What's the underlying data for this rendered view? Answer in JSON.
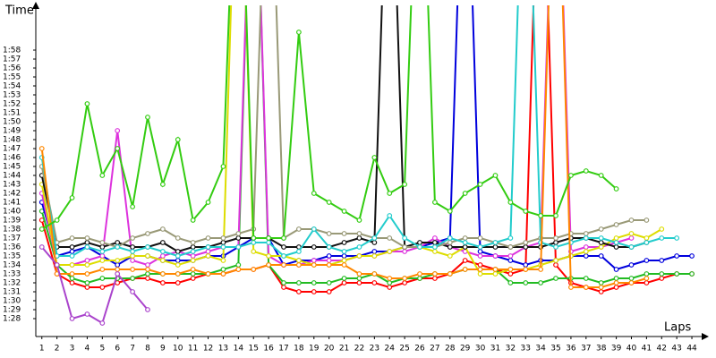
{
  "chart_data": {
    "type": "line",
    "y_label": "Time",
    "x_label": "Laps",
    "x": [
      1,
      2,
      3,
      4,
      5,
      6,
      7,
      8,
      9,
      10,
      11,
      12,
      13,
      14,
      15,
      16,
      17,
      18,
      19,
      20,
      21,
      22,
      23,
      24,
      25,
      26,
      27,
      28,
      29,
      30,
      31,
      32,
      33,
      34,
      35,
      36,
      37,
      38,
      39,
      40,
      41,
      42,
      43,
      44
    ],
    "xlim": [
      0.6,
      45.3
    ],
    "xticks": [
      1,
      2,
      3,
      4,
      5,
      6,
      7,
      8,
      9,
      10,
      11,
      12,
      13,
      14,
      15,
      16,
      17,
      18,
      19,
      20,
      21,
      22,
      23,
      24,
      25,
      26,
      27,
      28,
      29,
      30,
      31,
      32,
      33,
      34,
      35,
      36,
      37,
      38,
      39,
      40,
      41,
      42,
      43,
      44
    ],
    "ylim": [
      86,
      123
    ],
    "yticks": [
      {
        "value": 88,
        "label": "1:28"
      },
      {
        "value": 89,
        "label": "1:29"
      },
      {
        "value": 90,
        "label": "1:30"
      },
      {
        "value": 91,
        "label": "1:31"
      },
      {
        "value": 92,
        "label": "1:32"
      },
      {
        "value": 93,
        "label": "1:33"
      },
      {
        "value": 94,
        "label": "1:34"
      },
      {
        "value": 95,
        "label": "1:35"
      },
      {
        "value": 96,
        "label": "1:36"
      },
      {
        "value": 97,
        "label": "1:37"
      },
      {
        "value": 98,
        "label": "1:38"
      },
      {
        "value": 99,
        "label": "1:39"
      },
      {
        "value": 100,
        "label": "1:40"
      },
      {
        "value": 101,
        "label": "1:41"
      },
      {
        "value": 102,
        "label": "1:42"
      },
      {
        "value": 103,
        "label": "1:43"
      },
      {
        "value": 104,
        "label": "1:44"
      },
      {
        "value": 105,
        "label": "1:45"
      },
      {
        "value": 106,
        "label": "1:46"
      },
      {
        "value": 107,
        "label": "1:47"
      },
      {
        "value": 108,
        "label": "1:48"
      },
      {
        "value": 109,
        "label": "1:49"
      },
      {
        "value": 110,
        "label": "1:50"
      },
      {
        "value": 111,
        "label": "1:51"
      },
      {
        "value": 112,
        "label": "1:52"
      },
      {
        "value": 113,
        "label": "1:53"
      },
      {
        "value": 114,
        "label": "1:54"
      },
      {
        "value": 115,
        "label": "1:55"
      },
      {
        "value": 116,
        "label": "1:56"
      },
      {
        "value": 117,
        "label": "1:57"
      },
      {
        "value": 118,
        "label": "1:58"
      }
    ],
    "grid": false,
    "series": [
      {
        "color": "#ff0000",
        "values": [
          99,
          93,
          92,
          91.5,
          91.5,
          92,
          92.5,
          92.5,
          92,
          92,
          92.5,
          93,
          93,
          93.5,
          93.5,
          94,
          91.5,
          91,
          91,
          91,
          92,
          92,
          92,
          91.5,
          92,
          92.5,
          92.5,
          93,
          94.5,
          94,
          93.5,
          93,
          93.5,
          150,
          94,
          92,
          91.5,
          91,
          91.5,
          92,
          92,
          92.5,
          93,
          93
        ]
      },
      {
        "color": "#22bb22",
        "values": [
          100,
          94,
          92.5,
          92,
          92.5,
          92.5,
          92.5,
          93,
          93,
          93,
          93,
          93,
          93.5,
          94,
          150,
          94,
          92,
          92,
          92,
          92,
          92.5,
          92.5,
          93,
          92,
          92.5,
          92.5,
          93,
          93,
          93.5,
          93.5,
          93.5,
          92,
          92,
          92,
          92.5,
          92.5,
          92.5,
          92,
          92.5,
          92.5,
          93,
          93,
          93,
          93
        ]
      },
      {
        "color": "#0000dd",
        "values": [
          101,
          95,
          95.5,
          96,
          95,
          94,
          95,
          95,
          94.5,
          94.5,
          94.5,
          95,
          95,
          96,
          97,
          97,
          94,
          94.5,
          94.5,
          95,
          95,
          95,
          95.5,
          95.5,
          96,
          96,
          96.5,
          97,
          150,
          95.5,
          95,
          94.5,
          94,
          94.5,
          94.5,
          95,
          95,
          95,
          93.5,
          94,
          94.5,
          94.5,
          95,
          95
        ]
      },
      {
        "color": "#dd33dd",
        "values": [
          102,
          94,
          94,
          94.5,
          95,
          109,
          94.5,
          94,
          95,
          95.5,
          95,
          95.5,
          96,
          96,
          150,
          95,
          94,
          94,
          94.5,
          94.5,
          94.5,
          95,
          95,
          95.5,
          95.5,
          96,
          97,
          96,
          95.5,
          95,
          95,
          95,
          96,
          96.5,
          150,
          95.5,
          96,
          96,
          96.5,
          97,
          null,
          null,
          null,
          null
        ]
      },
      {
        "color": "#dddd00",
        "values": [
          103,
          94,
          94,
          94,
          94.5,
          94.5,
          95,
          95,
          94.5,
          94,
          94.5,
          95,
          94.5,
          150,
          95.5,
          95,
          95,
          94.5,
          94,
          94,
          94.5,
          95,
          95,
          95.5,
          96,
          96,
          95.5,
          95,
          96,
          93,
          93,
          93.5,
          93.5,
          94,
          94.5,
          95,
          95.5,
          96,
          97,
          97.5,
          97,
          98,
          null,
          null
        ]
      },
      {
        "color": "#111111",
        "values": [
          104,
          96,
          96,
          96.5,
          96,
          96.5,
          96,
          96,
          96.5,
          95.5,
          96,
          96,
          96.5,
          97,
          97,
          97,
          96,
          96,
          96,
          96,
          96.5,
          97,
          96.5,
          150,
          96,
          96.5,
          96.5,
          96,
          96,
          96,
          96,
          96,
          96,
          96,
          96.5,
          97,
          97,
          96.5,
          96,
          96,
          96.5,
          null,
          null,
          null
        ]
      },
      {
        "color": "#999977",
        "values": [
          105,
          96.5,
          97,
          97,
          96.5,
          96,
          97,
          97.5,
          98,
          97,
          96.5,
          97,
          97,
          97.5,
          98,
          150,
          97,
          98,
          98,
          97.5,
          97.5,
          97.5,
          97,
          97,
          96,
          96,
          96,
          96.5,
          97,
          97,
          96.5,
          96,
          96.5,
          97,
          97,
          97.5,
          97.5,
          98,
          98.5,
          99,
          99,
          null,
          null,
          null
        ]
      },
      {
        "color": "#22cccc",
        "values": [
          106,
          95,
          95,
          96,
          95.5,
          96,
          95.5,
          96,
          95.5,
          95,
          95.5,
          96,
          96,
          96,
          96.5,
          96.5,
          95,
          95.5,
          98,
          96,
          95.5,
          96,
          97,
          99.5,
          97,
          96,
          96,
          97,
          96.5,
          96,
          96.5,
          97,
          150,
          96.5,
          96,
          96.5,
          97,
          97,
          96.5,
          96,
          96.5,
          97,
          97,
          null
        ]
      },
      {
        "color": "#ff8800",
        "values": [
          107,
          93,
          93,
          93,
          93.5,
          93.5,
          93.5,
          93.5,
          93,
          93,
          93.5,
          93,
          93,
          93.5,
          93.5,
          94,
          94,
          94,
          94,
          94,
          94,
          93,
          93,
          92.5,
          92.5,
          93,
          93,
          93,
          93.5,
          93.5,
          93.5,
          93.5,
          93.5,
          93.5,
          150,
          91.5,
          91.5,
          91.5,
          92,
          92,
          92.5,
          null,
          null,
          null
        ]
      },
      {
        "color": "#33cc11",
        "values": [
          98,
          99,
          101.5,
          112,
          104,
          107,
          100.5,
          110.5,
          103,
          108,
          99,
          101,
          105,
          150,
          97,
          97,
          97,
          120,
          102,
          101,
          100,
          99,
          106,
          102,
          103,
          150,
          101,
          100,
          102,
          103,
          104,
          101,
          100,
          99.5,
          99.5,
          104,
          104.5,
          104,
          102.5,
          null,
          null,
          null,
          null,
          null
        ]
      },
      {
        "color": "#aa44cc",
        "values": [
          96,
          94,
          88,
          88.5,
          87.5,
          93,
          91,
          89,
          null,
          null,
          null,
          null,
          null,
          null,
          null,
          null,
          null,
          null,
          null,
          null,
          null,
          null,
          null,
          null,
          null,
          null,
          null,
          null,
          null,
          null,
          null,
          null,
          null,
          null,
          null,
          null,
          null,
          null,
          null,
          null,
          null,
          null,
          null,
          null
        ]
      }
    ]
  }
}
